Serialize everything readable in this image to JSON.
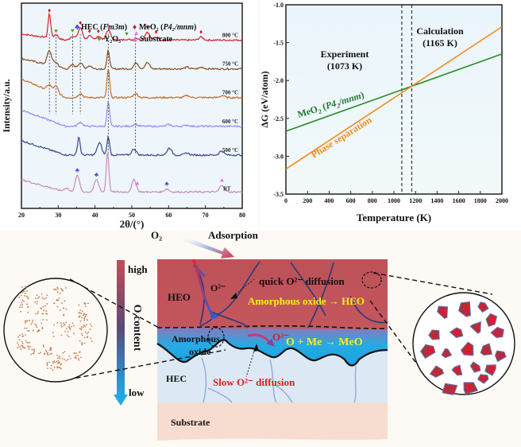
{
  "xrd_panel": {
    "chart_data": {
      "type": "line",
      "xlabel": "2θ/(°)",
      "ylabel": "Intensity/a.u.",
      "xlim": [
        20,
        80
      ],
      "xticks": [
        20,
        30,
        40,
        50,
        60,
        70,
        80
      ],
      "yticks_shown": false,
      "legend": [
        {
          "symbol": "club",
          "color": "#3b4fd0",
          "label": "HEC",
          "space_group": "Fm3m"
        },
        {
          "symbol": "diamond",
          "color": "#d01020",
          "label": "MeO₂",
          "space_group": "P4₂/mnm"
        },
        {
          "symbol": "heart",
          "color": "#5aa02c",
          "label": "Y₂O₃",
          "space_group": ""
        },
        {
          "symbol": "triangle",
          "color": "#e070e0",
          "label": "Substrate",
          "space_group": ""
        }
      ],
      "legend_position": "top-center",
      "series": [
        {
          "name": "800 °C",
          "color": "#d42027",
          "baseline": 0.82,
          "peaks": [
            [
              27.6,
              0.12
            ],
            [
              29.4,
              0.02
            ],
            [
              33.9,
              0.02
            ],
            [
              36.0,
              0.06
            ],
            [
              38.5,
              0.02
            ],
            [
              40.9,
              0.02
            ],
            [
              43.6,
              0.05
            ],
            [
              48.6,
              0.005
            ],
            [
              51.2,
              0.01
            ],
            [
              54.2,
              0.04
            ],
            [
              56.6,
              0.015
            ],
            [
              68.8,
              0.015
            ]
          ],
          "slope": 0.03
        },
        {
          "name": "750 °C",
          "color": "#8b4a1c",
          "baseline": 0.68,
          "peaks": [
            [
              27.6,
              0.07
            ],
            [
              29.4,
              0.02
            ],
            [
              33.9,
              0.02
            ],
            [
              36.0,
              0.03
            ],
            [
              38.5,
              0.015
            ],
            [
              43.6,
              0.09
            ],
            [
              51.2,
              0.03
            ],
            [
              54.2,
              0.03
            ],
            [
              65,
              0.008
            ],
            [
              69,
              0.008
            ]
          ],
          "slope": 0.05
        },
        {
          "name": "700 °C",
          "color": "#c86a1e",
          "baseline": 0.54,
          "peaks": [
            [
              27.6,
              0.03
            ],
            [
              29.4,
              0.035
            ],
            [
              36.0,
              0.02
            ],
            [
              43.6,
              0.14
            ],
            [
              51.0,
              0.02
            ],
            [
              65,
              0.01
            ],
            [
              74.6,
              0.01
            ]
          ],
          "slope": 0.09
        },
        {
          "name": "600 °C",
          "color": "#8a8ef0",
          "baseline": 0.4,
          "peaks": [
            [
              36.0,
              0.02
            ],
            [
              43.6,
              0.12
            ],
            [
              51.0,
              0.01
            ],
            [
              60,
              0.008
            ],
            [
              65,
              0.006
            ]
          ],
          "slope": 0.08
        },
        {
          "name": "500 °C",
          "color": "#34478f",
          "baseline": 0.26,
          "peaks": [
            [
              35.6,
              0.09
            ],
            [
              41.2,
              0.06
            ],
            [
              43.6,
              0.09
            ],
            [
              50.6,
              0.03
            ],
            [
              60.2,
              0.035
            ],
            [
              65,
              0.01
            ],
            [
              74.4,
              0.02
            ]
          ],
          "slope": 0.07
        },
        {
          "name": "RT",
          "color": "#c98bb8",
          "baseline": 0.08,
          "peaks": [
            [
              32.2,
              0.02
            ],
            [
              35.2,
              0.08
            ],
            [
              40.4,
              0.06
            ],
            [
              43.4,
              0.2
            ],
            [
              50.6,
              0.06
            ],
            [
              59.5,
              0.015
            ],
            [
              74.5,
              0.035
            ]
          ],
          "slope": 0.06
        }
      ],
      "markers": [
        {
          "series": "800 °C",
          "symbol": "diamond",
          "x": [
            27.6,
            36.0,
            38.5,
            40.9,
            54.2,
            56.6,
            68.8
          ]
        },
        {
          "series": "800 °C",
          "symbol": "heart",
          "x": [
            29.4,
            33.9,
            48.6
          ]
        },
        {
          "series": "800 °C",
          "symbol": "triangle",
          "x": [
            43.6,
            51.2
          ]
        },
        {
          "series": "RT",
          "symbol": "club",
          "x": [
            35.2,
            40.4,
            59.5
          ]
        },
        {
          "series": "RT",
          "symbol": "triangle",
          "x": [
            51.5,
            74.5
          ]
        }
      ],
      "dotted_guides_x": [
        27.6,
        29.4,
        33.9,
        36.0,
        43.6,
        51.0
      ]
    }
  },
  "dg_panel": {
    "chart_data": {
      "type": "line",
      "xlabel": "Temperature (K)",
      "ylabel": "ΔG (eV/atom)",
      "xlim": [
        0,
        2000
      ],
      "ylim": [
        -3.5,
        -1.0
      ],
      "xticks": [
        0,
        200,
        400,
        600,
        800,
        1000,
        1200,
        1400,
        1600,
        1800,
        2000
      ],
      "yticks": [
        -3.5,
        -3.0,
        -2.5,
        -2.0,
        -1.5,
        -1.0
      ],
      "series": [
        {
          "name": "MeO₂ (P4₂/mnm)",
          "color": "#2a8a2a",
          "x": [
            0,
            2000
          ],
          "y": [
            -2.67,
            -1.65
          ]
        },
        {
          "name": "Phase separation",
          "color": "#f08c1c",
          "x": [
            0,
            2000
          ],
          "y": [
            -3.17,
            -1.29
          ]
        }
      ],
      "vlines": [
        {
          "x": 1073,
          "label": "Experiment",
          "sublabel": "(1073 K)"
        },
        {
          "x": 1165,
          "label": "Calculation",
          "sublabel": "(1165 K)"
        }
      ]
    }
  },
  "schematic": {
    "o2_label": "O₂",
    "adsorption_label": "Adsorption",
    "gradient_bar": {
      "high_label": "high",
      "low_label": "low",
      "axis_label": "O content"
    },
    "layers": {
      "heo_label": "HEO",
      "amorphous_label_line1": "Amorphous",
      "amorphous_label_line2": "oxide",
      "hec_label": "HEC",
      "substrate_label": "Substrate"
    },
    "annotations": {
      "o2minus_top": "O²⁻",
      "quick_diffusion": "quick O²⁻ diffusion",
      "amorphous_to_heo": "Amorphous oxide → HEO",
      "o2minus_mid": "O²⁻",
      "reaction": "O + Me → MeO",
      "slow_diffusion": "Slow O²⁻ diffusion"
    },
    "colors": {
      "heo": "#c0555c",
      "amorphous": "#27a9e1",
      "hec": "#dce9f5",
      "substrate": "#f6ddd0",
      "yellow_text": "#f5f01e",
      "red_text": "#e01a1a"
    }
  }
}
